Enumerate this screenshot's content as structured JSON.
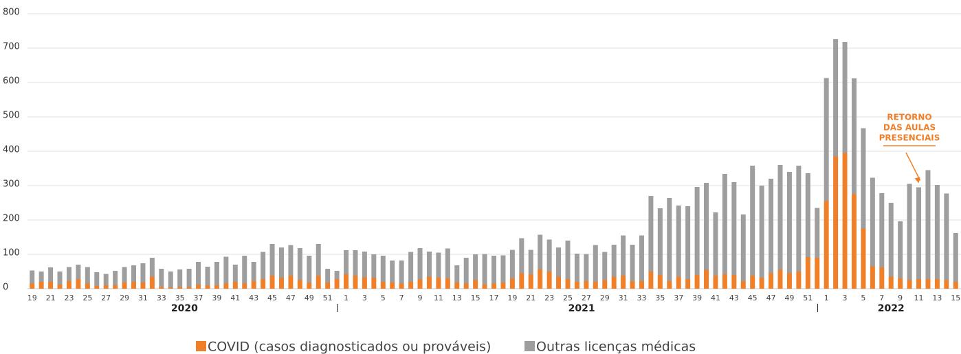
{
  "chart_data": {
    "type": "stacked_bar",
    "categories": [
      "19",
      null,
      "21",
      null,
      "23",
      null,
      "25",
      null,
      "27",
      null,
      "29",
      null,
      "31",
      null,
      "33",
      null,
      "35",
      null,
      "37",
      null,
      "39",
      null,
      "41",
      null,
      "43",
      null,
      "45",
      null,
      "47",
      null,
      "49",
      null,
      "51",
      null,
      "1",
      null,
      "3",
      null,
      "5",
      null,
      "7",
      null,
      "9",
      null,
      "11",
      null,
      "13",
      null,
      "15",
      null,
      "17",
      null,
      "19",
      null,
      "21",
      null,
      "23",
      null,
      "25",
      null,
      "27",
      null,
      "29",
      null,
      "31",
      null,
      "33",
      null,
      "35",
      null,
      "37",
      null,
      "39",
      null,
      "41",
      null,
      "43",
      null,
      "45",
      null,
      "47",
      null,
      "49",
      null,
      "51",
      null,
      "1",
      null,
      "3",
      null,
      "5",
      null,
      "7",
      null,
      "9",
      null,
      "11",
      null,
      "13",
      null,
      "15"
    ],
    "years": [
      "2020",
      "2021",
      "2022"
    ],
    "series": [
      {
        "name": "COVID (casos diagnosticados ou prováveis)",
        "color": "#f07f2a",
        "values": [
          15,
          20,
          20,
          12,
          22,
          28,
          15,
          8,
          10,
          10,
          18,
          20,
          18,
          35,
          5,
          3,
          5,
          5,
          12,
          10,
          10,
          15,
          20,
          15,
          22,
          28,
          38,
          32,
          38,
          25,
          18,
          38,
          18,
          28,
          42,
          38,
          33,
          32,
          20,
          18,
          15,
          20,
          28,
          35,
          32,
          30,
          18,
          15,
          25,
          12,
          15,
          18,
          30,
          45,
          42,
          57,
          50,
          35,
          28,
          20,
          22,
          20,
          25,
          35,
          38,
          22,
          22,
          50,
          40,
          22,
          35,
          28,
          40,
          55,
          38,
          42,
          40,
          22,
          38,
          32,
          45,
          55,
          45,
          50,
          92,
          90,
          255,
          385,
          395,
          275,
          175,
          65,
          62,
          35,
          30,
          25,
          28,
          28,
          28,
          25,
          20
        ]
      },
      {
        "name": "Outras licenças médicas",
        "color": "#9e9e9e",
        "values": [
          38,
          30,
          42,
          38,
          41,
          42,
          48,
          40,
          33,
          42,
          45,
          48,
          56,
          55,
          53,
          47,
          51,
          53,
          66,
          54,
          68,
          78,
          50,
          81,
          56,
          79,
          92,
          88,
          89,
          93,
          78,
          92,
          40,
          24,
          70,
          74,
          75,
          68,
          76,
          64,
          67,
          87,
          90,
          73,
          73,
          87,
          50,
          75,
          75,
          89,
          81,
          79,
          83,
          102,
          71,
          100,
          93,
          85,
          112,
          82,
          79,
          107,
          82,
          93,
          117,
          106,
          133,
          220,
          194,
          242,
          207,
          212,
          256,
          253,
          184,
          292,
          270,
          194,
          320,
          268,
          275,
          305,
          295,
          308,
          244,
          145,
          358,
          341,
          323,
          337,
          292,
          258,
          216,
          215,
          166,
          280,
          267,
          317,
          274,
          252,
          142
        ]
      }
    ],
    "annotation": [
      "RETORNO",
      "DAS AULAS",
      "PRESENCIAIS"
    ],
    "ylim": [
      0,
      800
    ],
    "yticks": [
      0,
      100,
      200,
      300,
      400,
      500,
      600,
      700,
      800
    ],
    "grid": true
  }
}
